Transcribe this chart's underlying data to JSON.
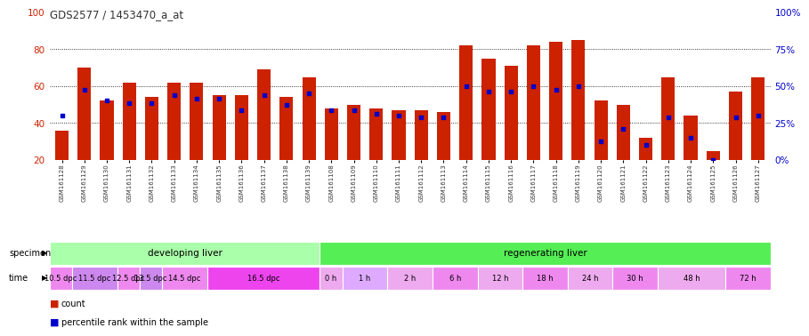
{
  "title": "GDS2577 / 1453470_a_at",
  "samples": [
    "GSM161128",
    "GSM161129",
    "GSM161130",
    "GSM161131",
    "GSM161132",
    "GSM161133",
    "GSM161134",
    "GSM161135",
    "GSM161136",
    "GSM161137",
    "GSM161138",
    "GSM161139",
    "GSM161108",
    "GSM161109",
    "GSM161110",
    "GSM161111",
    "GSM161112",
    "GSM161113",
    "GSM161114",
    "GSM161115",
    "GSM161116",
    "GSM161117",
    "GSM161118",
    "GSM161119",
    "GSM161120",
    "GSM161121",
    "GSM161122",
    "GSM161123",
    "GSM161124",
    "GSM161125",
    "GSM161126",
    "GSM161127"
  ],
  "red_values": [
    36,
    70,
    52,
    62,
    54,
    62,
    62,
    55,
    55,
    69,
    54,
    65,
    48,
    50,
    48,
    47,
    47,
    46,
    82,
    75,
    71,
    82,
    84,
    85,
    52,
    50,
    32,
    65,
    44,
    25,
    57,
    65
  ],
  "blue_values": [
    44,
    58,
    52,
    51,
    51,
    55,
    53,
    53,
    47,
    55,
    50,
    56,
    47,
    47,
    45,
    44,
    43,
    43,
    60,
    57,
    57,
    60,
    58,
    60,
    30,
    37,
    28,
    43,
    32,
    20,
    43,
    44
  ],
  "specimen_groups": [
    {
      "label": "developing liver",
      "start": 0,
      "end": 12,
      "color": "#aaffaa"
    },
    {
      "label": "regenerating liver",
      "start": 12,
      "end": 32,
      "color": "#55ee55"
    }
  ],
  "time_groups": [
    {
      "label": "10.5 dpc",
      "start": 0,
      "end": 1,
      "color": "#ee88ee"
    },
    {
      "label": "11.5 dpc",
      "start": 1,
      "end": 3,
      "color": "#cc88ee"
    },
    {
      "label": "12.5 dpc",
      "start": 3,
      "end": 4,
      "color": "#ee88ee"
    },
    {
      "label": "13.5 dpc",
      "start": 4,
      "end": 5,
      "color": "#cc88ee"
    },
    {
      "label": "14.5 dpc",
      "start": 5,
      "end": 7,
      "color": "#ee88ee"
    },
    {
      "label": "16.5 dpc",
      "start": 7,
      "end": 12,
      "color": "#ee44ee"
    },
    {
      "label": "0 h",
      "start": 12,
      "end": 13,
      "color": "#eeaaee"
    },
    {
      "label": "1 h",
      "start": 13,
      "end": 15,
      "color": "#ddaaff"
    },
    {
      "label": "2 h",
      "start": 15,
      "end": 17,
      "color": "#eeaaee"
    },
    {
      "label": "6 h",
      "start": 17,
      "end": 19,
      "color": "#ee88ee"
    },
    {
      "label": "12 h",
      "start": 19,
      "end": 21,
      "color": "#eeaaee"
    },
    {
      "label": "18 h",
      "start": 21,
      "end": 23,
      "color": "#ee88ee"
    },
    {
      "label": "24 h",
      "start": 23,
      "end": 25,
      "color": "#eeaaee"
    },
    {
      "label": "30 h",
      "start": 25,
      "end": 27,
      "color": "#ee88ee"
    },
    {
      "label": "48 h",
      "start": 27,
      "end": 30,
      "color": "#eeaaee"
    },
    {
      "label": "72 h",
      "start": 30,
      "end": 32,
      "color": "#ee88ee"
    }
  ],
  "red_color": "#cc2200",
  "blue_color": "#0000cc",
  "bar_width": 0.6,
  "ylim_left": [
    20,
    100
  ],
  "ylim_right": [
    0,
    100
  ],
  "grid_values": [
    40,
    60,
    80
  ],
  "yticks_left": [
    20,
    40,
    60,
    80,
    100
  ],
  "yticks_right": [
    0,
    25,
    50,
    75,
    100
  ],
  "ytick_labels_right": [
    "0%",
    "25%",
    "50%",
    "75%",
    "100%"
  ],
  "bg_color": "#ffffff",
  "legend_count_label": "count",
  "legend_pct_label": "percentile rank within the sample",
  "specimen_label": "specimen",
  "time_label": "time"
}
